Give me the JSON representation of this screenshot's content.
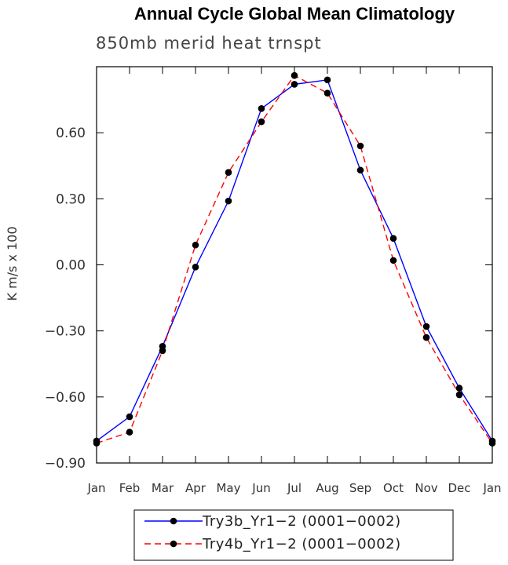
{
  "chart_data": {
    "type": "line",
    "title": "Annual Cycle Global Mean Climatology",
    "subtitle": "850mb merid heat trnspt",
    "xlabel": "",
    "ylabel": "K m/s x 100",
    "categories": [
      "Jan",
      "Feb",
      "Mar",
      "Apr",
      "May",
      "Jun",
      "Jul",
      "Aug",
      "Sep",
      "Oct",
      "Nov",
      "Dec",
      "Jan"
    ],
    "ylim": [
      -0.9,
      0.9
    ],
    "yticks": [
      -0.9,
      -0.6,
      -0.3,
      0.0,
      0.3,
      0.6
    ],
    "ytick_labels": [
      "−0.90",
      "−0.60",
      "−0.30",
      "0.00",
      "0.30",
      "0.60"
    ],
    "grid": false,
    "legend_position": "bottom",
    "series": [
      {
        "name": "Try3b_Yr1−2 (0001−0002)",
        "color": "#0000ff",
        "dash": "solid",
        "values": [
          -0.8,
          -0.69,
          -0.37,
          -0.01,
          0.29,
          0.71,
          0.82,
          0.84,
          0.43,
          0.12,
          -0.28,
          -0.56,
          -0.8
        ]
      },
      {
        "name": "Try4b_Yr1−2 (0001−0002)",
        "color": "#ff0000",
        "dash": "dashed",
        "values": [
          -0.81,
          -0.76,
          -0.39,
          0.09,
          0.42,
          0.65,
          0.86,
          0.78,
          0.54,
          0.02,
          -0.33,
          -0.59,
          -0.81
        ]
      }
    ]
  }
}
